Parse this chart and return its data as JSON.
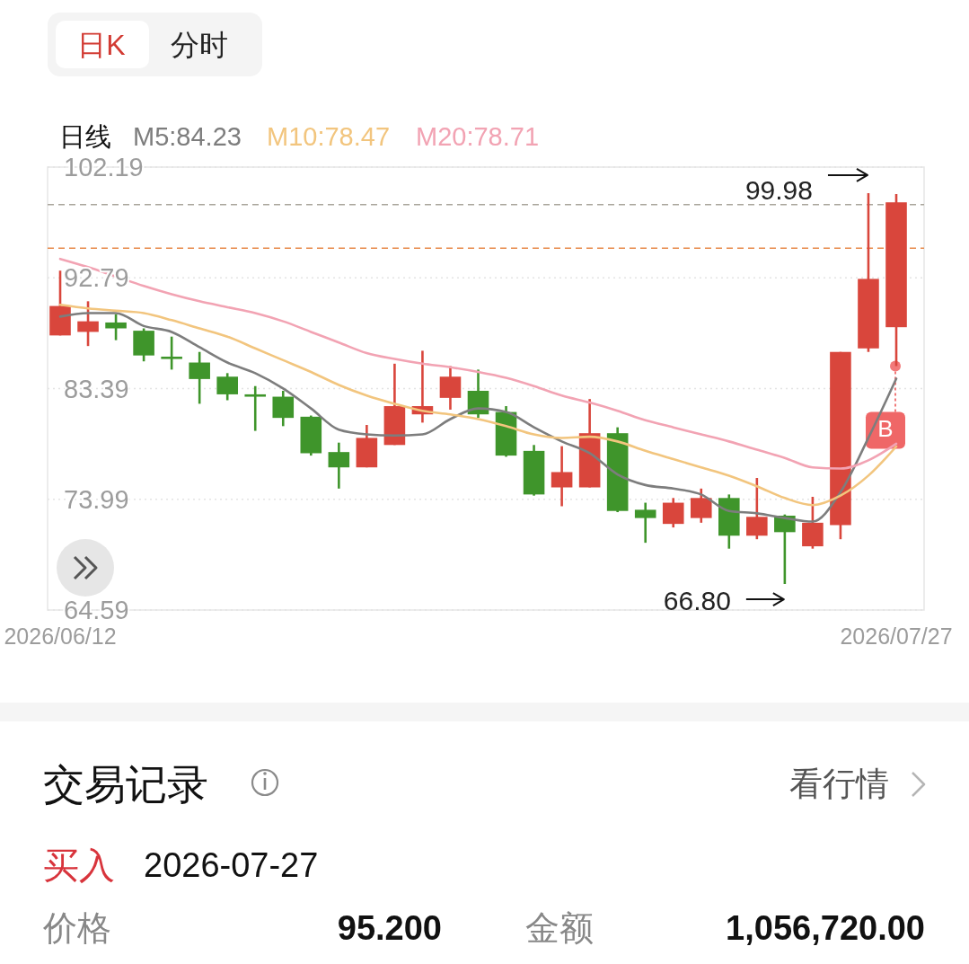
{
  "chart_data": {
    "type": "candlestick",
    "title": "日线",
    "categories": [
      "2026/06/12",
      null,
      null,
      null,
      null,
      null,
      null,
      null,
      null,
      null,
      null,
      null,
      null,
      null,
      null,
      null,
      null,
      null,
      null,
      null,
      null,
      null,
      null,
      null,
      null,
      null,
      null,
      null,
      null,
      null,
      "2026/07/27"
    ],
    "ohlc": [
      [
        87.9,
        93.4,
        87.9,
        90.4
      ],
      [
        88.2,
        90.8,
        87.0,
        89.1
      ],
      [
        89.0,
        89.7,
        87.5,
        88.5
      ],
      [
        88.3,
        88.5,
        85.7,
        86.2
      ],
      [
        86.1,
        87.8,
        85.0,
        85.9
      ],
      [
        85.6,
        86.5,
        82.1,
        84.2
      ],
      [
        84.4,
        84.7,
        82.4,
        82.9
      ],
      [
        82.9,
        83.6,
        79.8,
        82.7
      ],
      [
        82.7,
        83.2,
        80.2,
        80.9
      ],
      [
        81.0,
        81.1,
        77.7,
        77.9
      ],
      [
        78.0,
        78.8,
        74.9,
        76.7
      ],
      [
        76.7,
        80.3,
        76.7,
        79.2
      ],
      [
        78.6,
        85.5,
        78.6,
        81.9
      ],
      [
        81.2,
        86.6,
        80.5,
        81.9
      ],
      [
        82.6,
        85.3,
        81.6,
        84.4
      ],
      [
        83.2,
        85.0,
        80.9,
        81.2
      ],
      [
        81.4,
        81.9,
        77.6,
        77.7
      ],
      [
        78.1,
        78.6,
        74.3,
        74.4
      ],
      [
        75.0,
        78.5,
        73.4,
        76.3
      ],
      [
        75.0,
        82.5,
        75.0,
        79.6
      ],
      [
        79.6,
        80.1,
        72.9,
        73.0
      ],
      [
        73.1,
        73.7,
        70.3,
        72.4
      ],
      [
        71.9,
        74.1,
        71.6,
        73.7
      ],
      [
        72.4,
        74.9,
        72.0,
        74.1
      ],
      [
        74.1,
        74.4,
        69.8,
        70.9
      ],
      [
        70.9,
        75.8,
        70.6,
        72.5
      ],
      [
        72.6,
        72.7,
        66.8,
        71.2
      ],
      [
        70.0,
        74.2,
        69.8,
        72.0
      ],
      [
        71.8,
        86.5,
        70.6,
        86.5
      ],
      [
        86.8,
        99.98,
        86.5,
        92.7
      ],
      [
        88.6,
        99.9,
        85.3,
        99.2
      ]
    ],
    "colors": [
      "#d9463c",
      "#d9463c",
      "#3f952b",
      "#3f952b",
      "#3f952b",
      "#3f952b",
      "#3f952b",
      "#3f952b",
      "#3f952b",
      "#3f952b",
      "#3f952b",
      "#d9463c",
      "#d9463c",
      "#d9463c",
      "#d9463c",
      "#3f952b",
      "#3f952b",
      "#3f952b",
      "#d9463c",
      "#d9463c",
      "#3f952b",
      "#3f952b",
      "#d9463c",
      "#d9463c",
      "#3f952b",
      "#d9463c",
      "#3f952b",
      "#d9463c",
      "#d9463c",
      "#d9463c",
      "#d9463c"
    ],
    "series": [
      {
        "name": "M5:84.23",
        "type": "line",
        "color": "#7d7d7d",
        "values": [
          89.5,
          89.8,
          89.8,
          88.7,
          88.2,
          86.9,
          85.6,
          84.7,
          83.4,
          81.7,
          79.9,
          79.5,
          79.4,
          79.5,
          80.8,
          81.7,
          81.4,
          80.1,
          78.9,
          77.9,
          76.1,
          75.2,
          74.9,
          74.4,
          73.0,
          72.8,
          72.4,
          72.1,
          74.6,
          79.2,
          84.23
        ]
      },
      {
        "name": "M10:78.47",
        "type": "line",
        "color": "#f2c57e",
        "values": [
          90.5,
          90.2,
          90.0,
          89.8,
          89.2,
          88.5,
          87.8,
          86.8,
          85.8,
          84.8,
          83.7,
          82.8,
          82.1,
          81.5,
          81.2,
          80.8,
          80.2,
          79.5,
          79.2,
          79.3,
          78.9,
          78.1,
          77.4,
          76.7,
          76.0,
          75.1,
          74.1,
          73.5,
          74.3,
          76.0,
          78.47
        ]
      },
      {
        "name": "M20:78.71",
        "type": "line",
        "color": "#f2a3b3",
        "values": [
          94.4,
          93.7,
          92.9,
          92.1,
          91.4,
          90.8,
          90.3,
          89.8,
          89.1,
          88.2,
          87.3,
          86.4,
          85.9,
          85.5,
          85.2,
          84.8,
          84.3,
          83.6,
          82.8,
          82.2,
          81.5,
          80.7,
          80.1,
          79.5,
          78.9,
          78.2,
          77.5,
          76.7,
          76.6,
          77.3,
          78.71
        ]
      }
    ],
    "ylim": [
      64.59,
      102.19
    ],
    "yticks": [
      102.19,
      92.79,
      83.39,
      73.99,
      64.59
    ],
    "grid": "y",
    "legend": "top left",
    "ref_lines": [
      {
        "axis": "y",
        "value": 99,
        "color": "#aaa59c",
        "line_style": "dashed"
      },
      {
        "axis": "y",
        "value": 95.3,
        "color": "#e8894a",
        "line_style": "dashed"
      }
    ],
    "annotations": [
      "日K",
      "分时",
      "99.98",
      "66.80",
      "B",
      "交易记录",
      "看行情",
      "买入",
      "2026-07-27",
      "价格",
      "95.200",
      "金额",
      "1,056,720.00"
    ]
  }
}
